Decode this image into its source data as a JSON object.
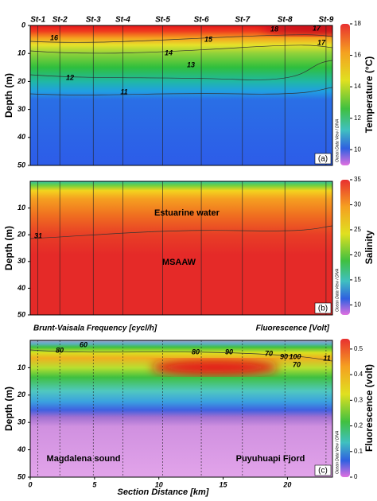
{
  "chart_data": [
    {
      "type": "contour",
      "panel_label": "(a)",
      "ylabel": "Depth (m)",
      "watermark": "Ocean Data View / DIVA",
      "xlim": [
        0,
        23.5
      ],
      "ylim": [
        0,
        50
      ],
      "yticks": [
        0,
        10,
        20,
        30,
        40,
        50
      ],
      "stations": {
        "names": [
          "St-1",
          "St-2",
          "St-3",
          "St-4",
          "St-5",
          "St-6",
          "St-7",
          "St-8",
          "St-9"
        ],
        "x": [
          0.6,
          2.3,
          4.9,
          7.2,
          10.3,
          13.3,
          16.5,
          19.8,
          23.0
        ]
      },
      "contour_labels": [
        18,
        17,
        17,
        16,
        15,
        14,
        13,
        12,
        11
      ],
      "colorbar": {
        "label": "Temperature (°C)",
        "lim": [
          9,
          18
        ],
        "ticks": [
          10,
          12,
          14,
          16,
          18
        ]
      }
    },
    {
      "type": "contour",
      "panel_label": "(b)",
      "ylabel": "Depth (m)",
      "watermark": "Ocean Data View / DIVA",
      "xlim": [
        0,
        23.5
      ],
      "ylim": [
        0,
        50
      ],
      "yticks": [
        10,
        20,
        30,
        40,
        50
      ],
      "annotations": [
        "Estuarine water",
        "MSAAW"
      ],
      "contour_labels": [
        31
      ],
      "colorbar": {
        "label": "Salinity",
        "lim": [
          8,
          35
        ],
        "ticks": [
          10,
          15,
          20,
          25,
          30,
          35
        ]
      }
    },
    {
      "type": "contour",
      "panel_label": "(c)",
      "ylabel": "Depth (m)",
      "watermark": "Ocean Data View / DIVA",
      "header_left": "Brunt-Vaisala Frequency [cycl/h]",
      "header_right": "Fluorescence [Volt]",
      "xlabel": "Section Distance [km]",
      "xlim": [
        0,
        23.5
      ],
      "xticks": [
        0,
        5,
        10,
        15,
        20
      ],
      "ylim": [
        0,
        50
      ],
      "yticks": [
        10,
        20,
        30,
        40,
        50
      ],
      "annotations": [
        "Magdalena sound",
        "Puyuhuapi Fjord"
      ],
      "contour_labels": [
        80,
        60,
        80,
        90,
        70,
        90,
        100,
        70,
        11
      ],
      "colorbar": {
        "label": "Fluorescence (volt)",
        "lim": [
          0,
          0.54
        ],
        "ticks": [
          0,
          0.1,
          0.2,
          0.3,
          0.4,
          0.5
        ]
      }
    }
  ]
}
